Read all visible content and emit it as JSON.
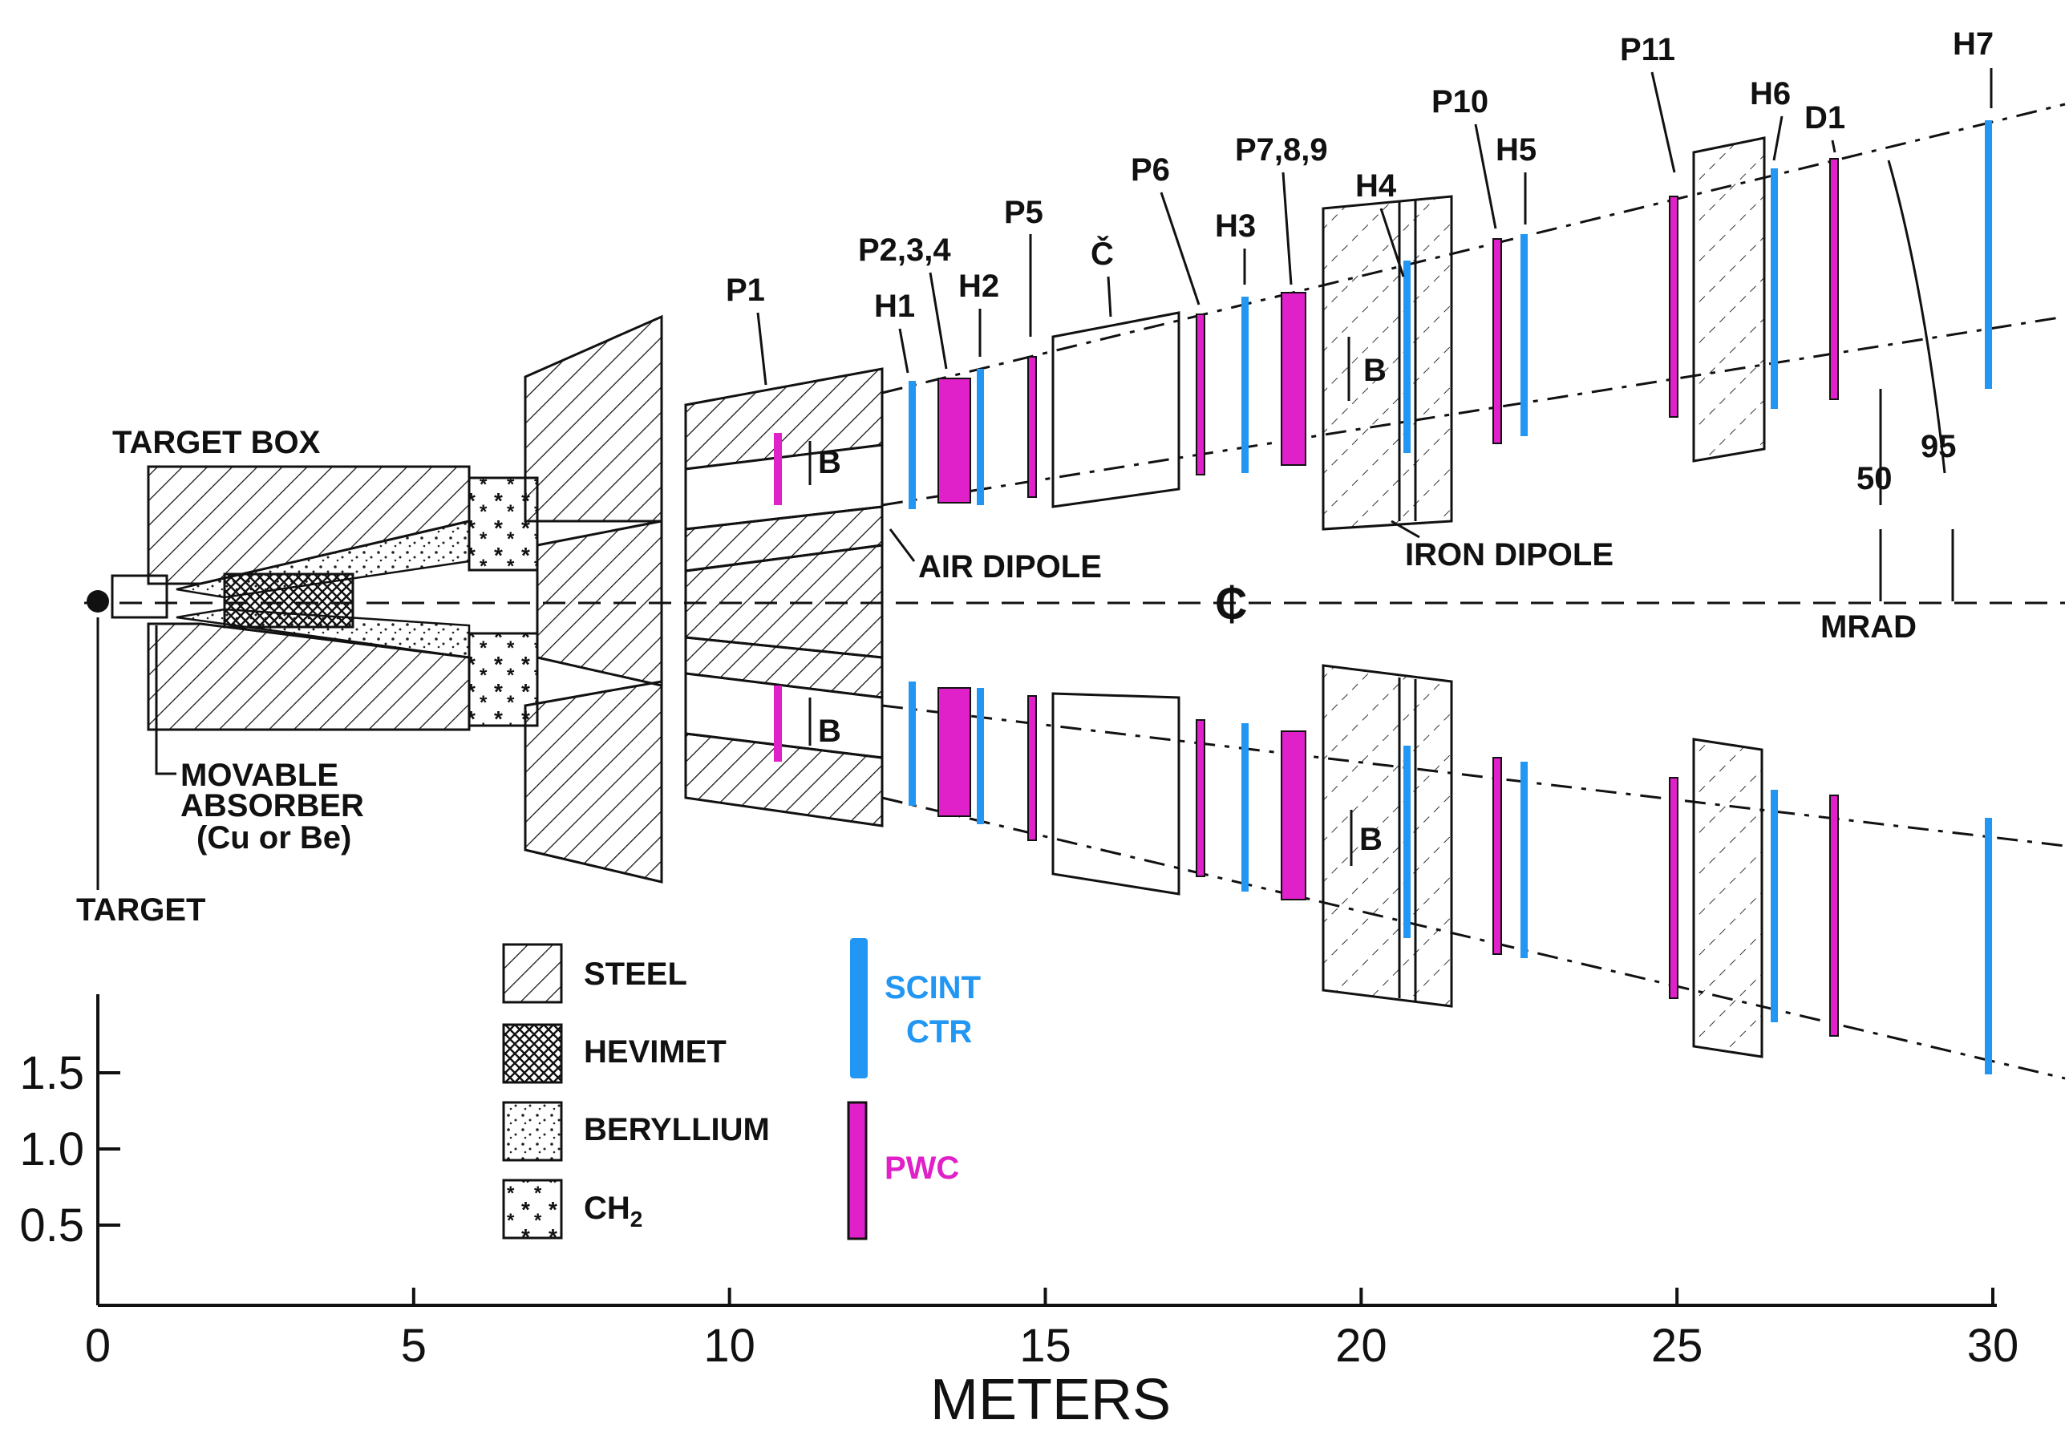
{
  "labels": {
    "target_box": "TARGET BOX",
    "target": "TARGET",
    "movable": "MOVABLE",
    "absorber": "ABSORBER",
    "absorber_mat": "(Cu or Be)",
    "air_dipole": "AIR DIPOLE",
    "iron_dipole": "IRON DIPOLE",
    "centerline": "₵",
    "mrad": "MRAD",
    "angle_50": "50",
    "angle_95": "95",
    "b_field": "B"
  },
  "detectors": {
    "P1": "P1",
    "H1": "H1",
    "P234": "P2,3,4",
    "H2": "H2",
    "P5": "P5",
    "C": "Č",
    "P6": "P6",
    "H3": "H3",
    "P789": "P7,8,9",
    "H4": "H4",
    "P10": "P10",
    "H5": "H5",
    "P11": "P11",
    "H6": "H6",
    "D1": "D1",
    "H7": "H7"
  },
  "legend": {
    "steel": "STEEL",
    "hevimet": "HEVIMET",
    "beryllium": "BERYLLIUM",
    "ch2": "CH",
    "ch2_sub": "2",
    "scint": "SCINT",
    "ctr": "CTR",
    "pwc": "PWC"
  },
  "axes": {
    "x_label": "METERS",
    "x_ticks": [
      "0",
      "5",
      "10",
      "15",
      "20",
      "25",
      "30"
    ],
    "y_ticks": [
      "1.5",
      "1.0",
      "0.5"
    ]
  },
  "colors": {
    "scint": "#2196f3",
    "pwc": "#e020c8",
    "ink": "#111111"
  }
}
